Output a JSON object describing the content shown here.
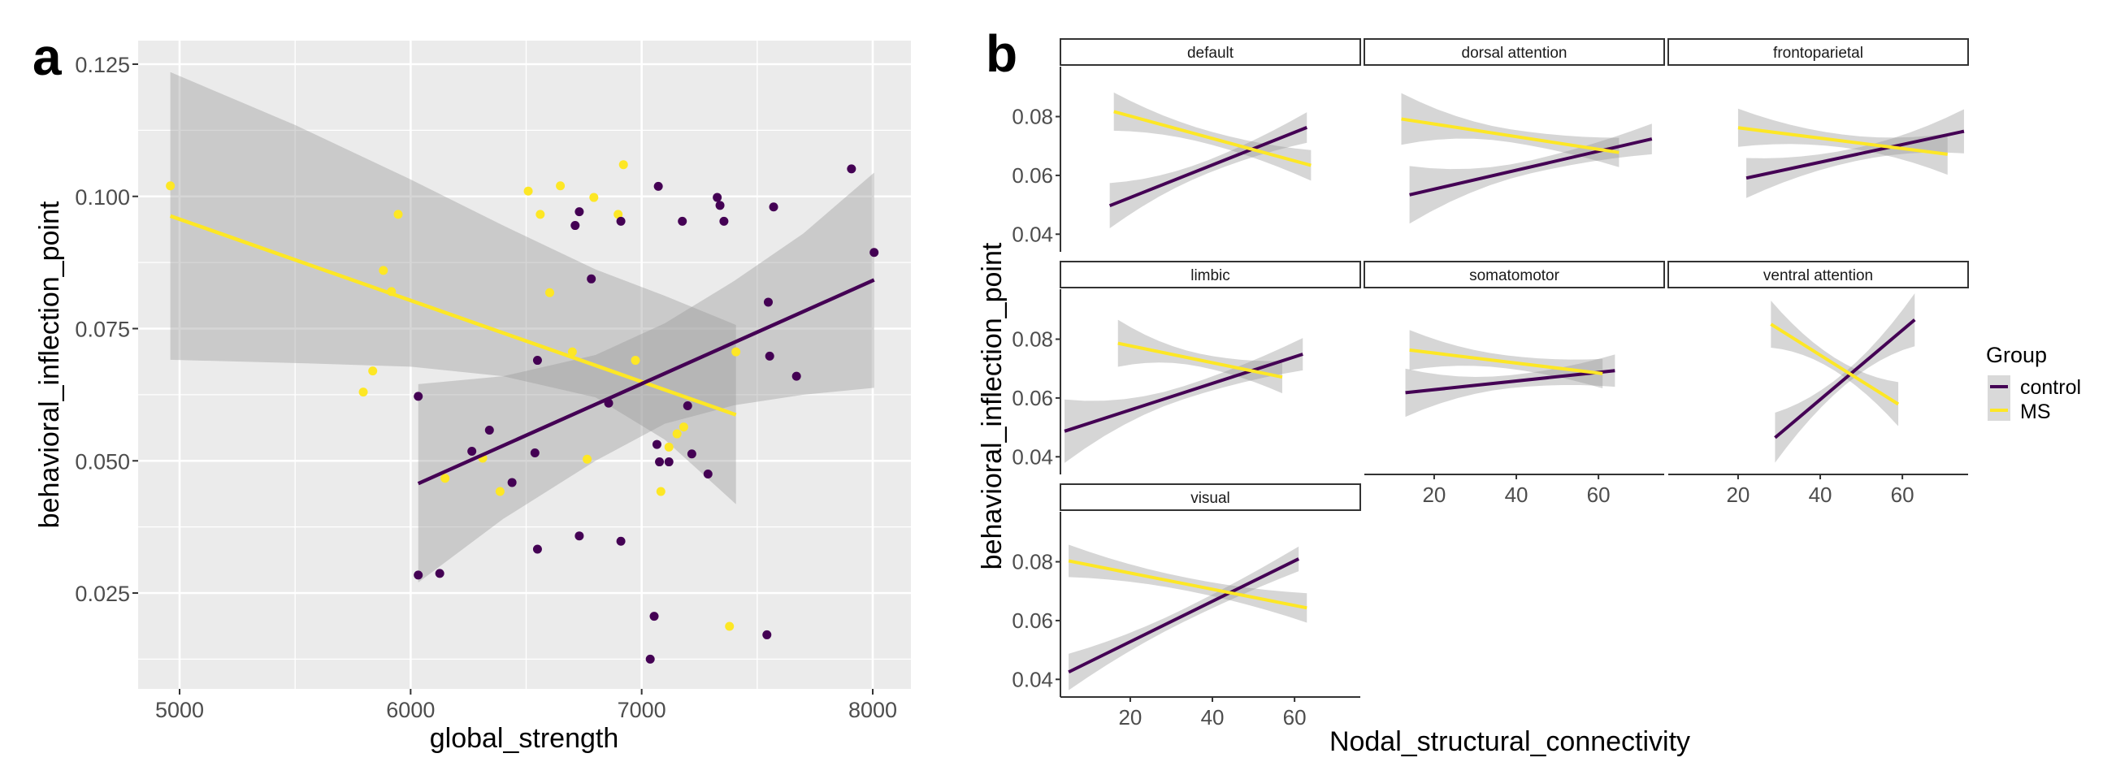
{
  "figure": {
    "panel_a_letter": "a",
    "panel_b_letter": "b"
  },
  "colors": {
    "control": "#440154",
    "MS": "#FDE725",
    "ribbon": "#999999",
    "panel_bg": "#EBEBEB",
    "grid": "#FFFFFF"
  },
  "chart_data": [
    {
      "id": "panel-a",
      "type": "scatter",
      "title": "",
      "xlabel": "global_strength",
      "ylabel": "behavioral_inflection_point",
      "xlim": [
        4820,
        8160
      ],
      "ylim": [
        0.0035,
        0.129
      ],
      "xticks": [
        5000,
        6000,
        7000,
        8000
      ],
      "xtick_labels": [
        "5000",
        "6000",
        "7000",
        "8000"
      ],
      "yticks": [
        0.025,
        0.05,
        0.075,
        0.1,
        0.125
      ],
      "ytick_labels": [
        "0.025",
        "0.050",
        "0.075",
        "0.100",
        "0.125"
      ],
      "grid": true,
      "series": [
        {
          "name": "MS",
          "color": "#FDE725",
          "points": [
            [
              4960,
              0.102
            ],
            [
              5946,
              0.0966
            ],
            [
              5882,
              0.086
            ],
            [
              5917,
              0.082
            ],
            [
              5836,
              0.067
            ],
            [
              5795,
              0.063
            ],
            [
              6509,
              0.101
            ],
            [
              6648,
              0.102
            ],
            [
              6561,
              0.0966
            ],
            [
              6793,
              0.0998
            ],
            [
              6921,
              0.106
            ],
            [
              6898,
              0.0966
            ],
            [
              6602,
              0.0818
            ],
            [
              6700,
              0.0706
            ],
            [
              6973,
              0.069
            ],
            [
              7408,
              0.0706
            ],
            [
              6149,
              0.0467
            ],
            [
              6312,
              0.0505
            ],
            [
              6387,
              0.0442
            ],
            [
              6764,
              0.0503
            ],
            [
              7153,
              0.0551
            ],
            [
              7182,
              0.0564
            ],
            [
              7118,
              0.0526
            ],
            [
              7083,
              0.0442
            ],
            [
              7380,
              0.0187
            ]
          ],
          "fit": {
            "x": [
              4960,
              7408
            ],
            "y": [
              0.0963,
              0.0587
            ]
          },
          "ci_upper": [
            [
              4960,
              0.1235
            ],
            [
              5500,
              0.1135
            ],
            [
              6000,
              0.1032
            ],
            [
              6400,
              0.0945
            ],
            [
              6800,
              0.0862
            ],
            [
              7100,
              0.0812
            ],
            [
              7408,
              0.0757
            ]
          ],
          "ci_lower": [
            [
              4960,
              0.0691
            ],
            [
              5500,
              0.0685
            ],
            [
              6000,
              0.0678
            ],
            [
              6400,
              0.066
            ],
            [
              6800,
              0.062
            ],
            [
              7100,
              0.054
            ],
            [
              7408,
              0.0418
            ]
          ]
        },
        {
          "name": "control",
          "color": "#440154",
          "points": [
            [
              6730,
              0.0971
            ],
            [
              6712,
              0.0945
            ],
            [
              6782,
              0.0844
            ],
            [
              6910,
              0.0953
            ],
            [
              7072,
              0.1019
            ],
            [
              7176,
              0.0953
            ],
            [
              7327,
              0.0998
            ],
            [
              7339,
              0.0983
            ],
            [
              7356,
              0.0953
            ],
            [
              7571,
              0.098
            ],
            [
              7908,
              0.1052
            ],
            [
              8006,
              0.0894
            ],
            [
              7548,
              0.08
            ],
            [
              7554,
              0.0698
            ],
            [
              7670,
              0.066
            ],
            [
              6549,
              0.069
            ],
            [
              6033,
              0.0622
            ],
            [
              7199,
              0.0604
            ],
            [
              6857,
              0.0609
            ],
            [
              6341,
              0.0558
            ],
            [
              6265,
              0.0518
            ],
            [
              6538,
              0.0515
            ],
            [
              6439,
              0.0459
            ],
            [
              7066,
              0.0531
            ],
            [
              7077,
              0.0498
            ],
            [
              7118,
              0.0498
            ],
            [
              7217,
              0.0513
            ],
            [
              7287,
              0.0475
            ],
            [
              6730,
              0.0358
            ],
            [
              6910,
              0.0348
            ],
            [
              6549,
              0.0333
            ],
            [
              6033,
              0.0284
            ],
            [
              6126,
              0.0287
            ],
            [
              7054,
              0.0206
            ],
            [
              7542,
              0.0171
            ],
            [
              7037,
              0.0125
            ]
          ],
          "fit": {
            "x": [
              6033,
              8006
            ],
            "y": [
              0.0457,
              0.0842
            ]
          },
          "ci_upper": [
            [
              6033,
              0.0645
            ],
            [
              6400,
              0.066
            ],
            [
              6800,
              0.07
            ],
            [
              7100,
              0.076
            ],
            [
              7400,
              0.084
            ],
            [
              7700,
              0.093
            ],
            [
              8006,
              0.1045
            ]
          ],
          "ci_lower": [
            [
              6033,
              0.027
            ],
            [
              6400,
              0.039
            ],
            [
              6800,
              0.05
            ],
            [
              7100,
              0.057
            ],
            [
              7400,
              0.0605
            ],
            [
              7700,
              0.0625
            ],
            [
              8006,
              0.0638
            ]
          ]
        }
      ]
    },
    {
      "id": "panel-b",
      "type": "line",
      "xlabel": "Nodal_structural_connectivity",
      "ylabel": "behavioral_inflection_point",
      "xlim": [
        3,
        76
      ],
      "ylim": [
        0.034,
        0.097
      ],
      "xticks": [
        20,
        40,
        60
      ],
      "xtick_labels": [
        "20",
        "40",
        "60"
      ],
      "yticks": [
        0.04,
        0.06,
        0.08
      ],
      "ytick_labels": [
        "0.04",
        "0.06",
        "0.08"
      ],
      "grid": false,
      "legend": {
        "title": "Group",
        "entries": [
          "control",
          "MS"
        ],
        "position": "right"
      },
      "facets": [
        {
          "name": "default",
          "control": {
            "x": [
              15,
              63
            ],
            "y": [
              0.0497,
              0.0763
            ],
            "se_start": 0.0077,
            "se_end": 0.0052
          },
          "MS": {
            "x": [
              16,
              64
            ],
            "y": [
              0.0817,
              0.0634
            ],
            "se_start": 0.0065,
            "se_end": 0.0052
          }
        },
        {
          "name": "dorsal attention",
          "control": {
            "x": [
              14,
              73
            ],
            "y": [
              0.0534,
              0.0724
            ],
            "se_start": 0.0098,
            "se_end": 0.0052
          },
          "MS": {
            "x": [
              12,
              65
            ],
            "y": [
              0.0792,
              0.0678
            ],
            "se_start": 0.0088,
            "se_end": 0.005
          },
          "note": ""
        },
        {
          "name": "frontoparietal",
          "control": {
            "x": [
              22,
              75
            ],
            "y": [
              0.0591,
              0.075
            ],
            "se_start": 0.0068,
            "se_end": 0.0075
          },
          "MS": {
            "x": [
              20,
              71
            ],
            "y": [
              0.0762,
              0.0672
            ],
            "se_start": 0.0065,
            "se_end": 0.007
          }
        },
        {
          "name": "limbic",
          "control": {
            "x": [
              4,
              62
            ],
            "y": [
              0.0487,
              0.0749
            ],
            "se_start": 0.0108,
            "se_end": 0.0055
          },
          "MS": {
            "x": [
              17,
              57
            ],
            "y": [
              0.0786,
              0.0671
            ],
            "se_start": 0.008,
            "se_end": 0.0055
          }
        },
        {
          "name": "somatomotor",
          "control": {
            "x": [
              13,
              64
            ],
            "y": [
              0.0618,
              0.0693
            ],
            "se_start": 0.0082,
            "se_end": 0.0055
          },
          "MS": {
            "x": [
              14,
              61
            ],
            "y": [
              0.0763,
              0.0683
            ],
            "se_start": 0.0068,
            "se_end": 0.005
          }
        },
        {
          "name": "ventral attention",
          "control": {
            "x": [
              29,
              63
            ],
            "y": [
              0.0465,
              0.0866
            ],
            "se_start": 0.0085,
            "se_end": 0.009
          },
          "MS": {
            "x": [
              28,
              59
            ],
            "y": [
              0.0851,
              0.0579
            ],
            "se_start": 0.008,
            "se_end": 0.0075
          }
        },
        {
          "name": "visual",
          "control": {
            "x": [
              5,
              61
            ],
            "y": [
              0.0425,
              0.081
            ],
            "se_start": 0.0062,
            "se_end": 0.0042
          },
          "MS": {
            "x": [
              5,
              63
            ],
            "y": [
              0.0803,
              0.0643
            ],
            "se_start": 0.0055,
            "se_end": 0.005
          }
        }
      ]
    }
  ]
}
